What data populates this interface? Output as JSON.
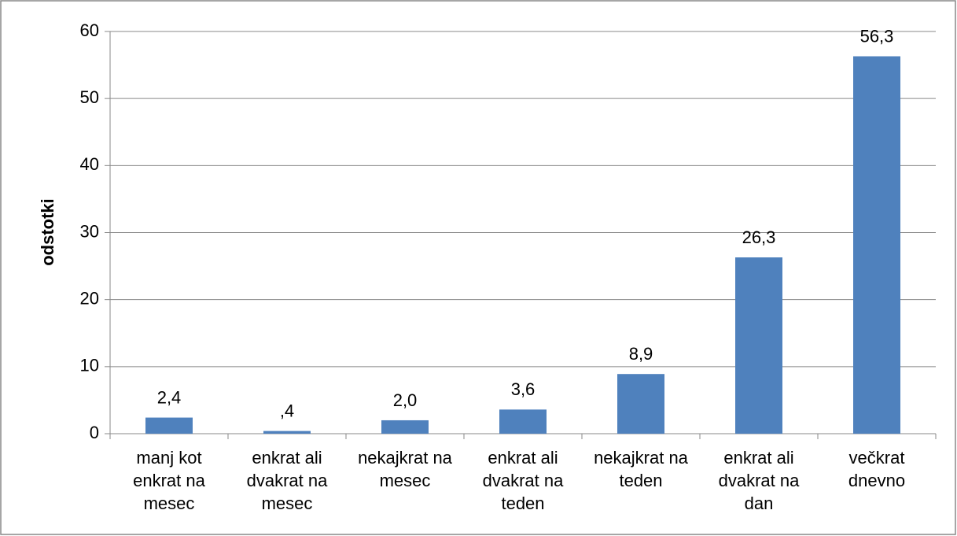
{
  "chart_data": {
    "type": "bar",
    "y_label": "odstotki",
    "categories": [
      "manj kot enkrat na mesec",
      "enkrat ali dvakrat na mesec",
      "nekajkrat na mesec",
      "enkrat ali dvakrat na teden",
      "nekajkrat na teden",
      "enkrat ali dvakrat na dan",
      "večkrat dnevno"
    ],
    "values": [
      2.4,
      0.4,
      2.0,
      3.6,
      8.9,
      26.3,
      56.3
    ],
    "value_labels": [
      "2,4",
      ",4",
      "2,0",
      "3,6",
      "8,9",
      "26,3",
      "56,3"
    ],
    "color": "#4f81bd",
    "ylim": [
      0,
      60
    ],
    "yticks": [
      0,
      10,
      20,
      30,
      40,
      50,
      60
    ],
    "grid": true
  }
}
